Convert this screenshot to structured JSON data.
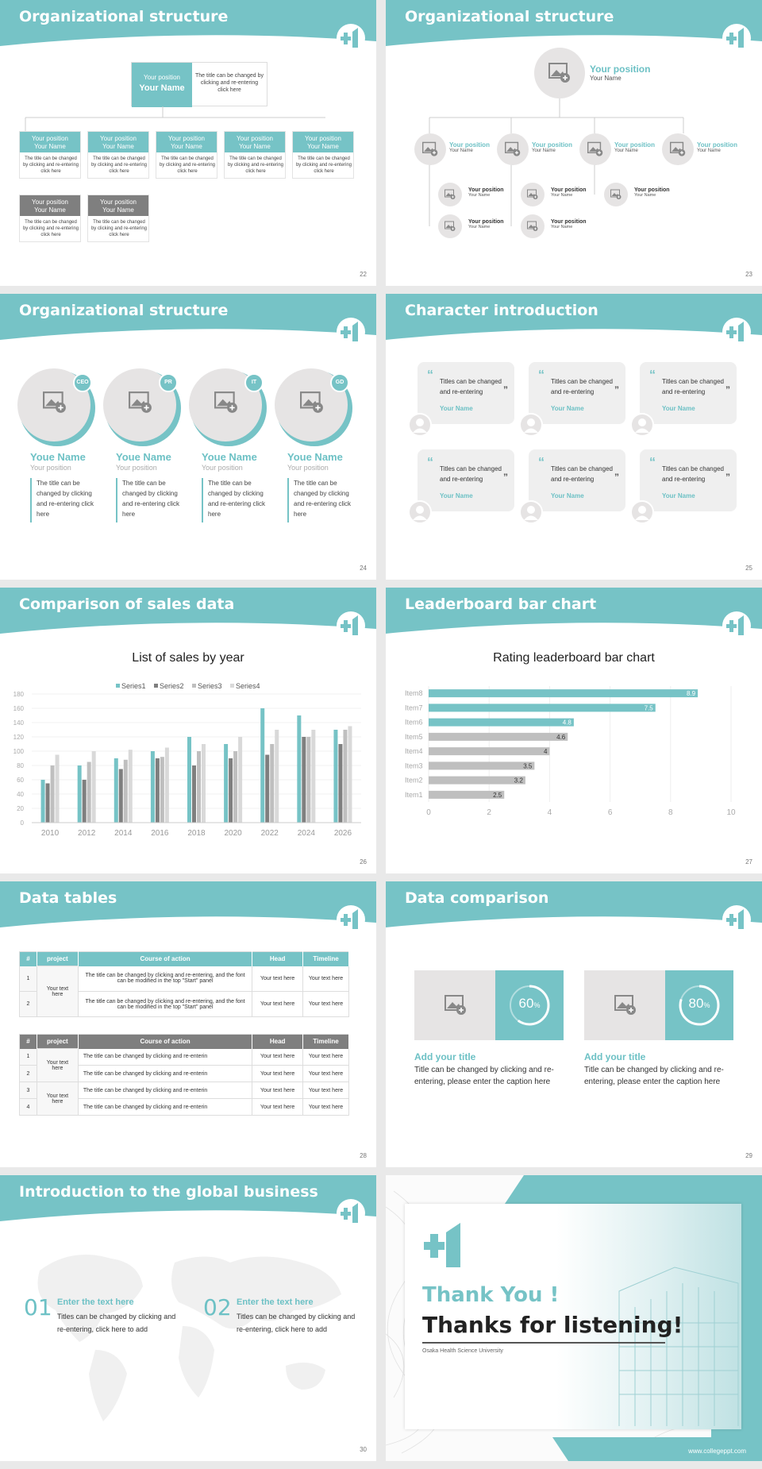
{
  "colors": {
    "accent": "#76c3c6",
    "gray": "#7f7f7f",
    "light": "#e6e4e4",
    "bg": "#e9e9e9"
  },
  "icons": {
    "logo": "plus-one-logo-icon",
    "image": "image-placeholder-icon",
    "user": "user-avatar-icon",
    "quote": "quote-icon"
  },
  "slides": {
    "s22": {
      "title": "Organizational structure",
      "num": "22",
      "top_position": "Your position",
      "top_name": "Your Name",
      "top_desc": "The title can be changed by clicking and re-entering click here",
      "row1": [
        {
          "position": "Your position",
          "name": "Your Name",
          "desc": "The title can be changed by clicking and re-entering click here"
        },
        {
          "position": "Your position",
          "name": "Your Name",
          "desc": "The title can be changed by clicking and re-entering click here"
        },
        {
          "position": "Your position",
          "name": "Your Name",
          "desc": "The title can be changed by clicking and re-entering click here"
        },
        {
          "position": "Your position",
          "name": "Your Name",
          "desc": "The title can be changed by clicking and re-entering click here"
        },
        {
          "position": "Your position",
          "name": "Your Name",
          "desc": "The title can be changed by clicking and re-entering click here"
        }
      ],
      "row2": [
        {
          "position": "Your position",
          "name": "Your Name",
          "desc": "The title can be changed by clicking and re-entering click here"
        },
        {
          "position": "Your position",
          "name": "Your Name",
          "desc": "The title can be changed by clicking and re-entering click here"
        }
      ]
    },
    "s23": {
      "title": "Organizational structure",
      "num": "23",
      "top": {
        "position": "Your position",
        "name": "Your Name"
      },
      "mid": [
        {
          "position": "Your position",
          "name": "Your Name"
        },
        {
          "position": "Your position",
          "name": "Your Name"
        },
        {
          "position": "Your position",
          "name": "Your Name"
        },
        {
          "position": "Your position",
          "name": "Your Name"
        }
      ],
      "sub": [
        {
          "position": "Your position",
          "name": "Your Name"
        },
        {
          "position": "Your position",
          "name": "Your Name"
        },
        {
          "position": "Your position",
          "name": "Your Name"
        },
        {
          "position": "Your position",
          "name": "Your Name"
        },
        {
          "position": "Your position",
          "name": "Your Name"
        },
        {
          "position": "Your position",
          "name": "Your Name"
        }
      ]
    },
    "s24": {
      "title": "Organizational structure",
      "num": "24",
      "people": [
        {
          "badge": "CEO",
          "name": "Youe Name",
          "position": "Your position",
          "desc": "The title can be changed by clicking and re-entering click here"
        },
        {
          "badge": "PR",
          "name": "Youe Name",
          "position": "Your position",
          "desc": "The title can be changed by clicking and re-entering click here"
        },
        {
          "badge": "IT",
          "name": "Youe Name",
          "position": "Your position",
          "desc": "The title can be changed by clicking and re-entering click here"
        },
        {
          "badge": "GD",
          "name": "Youe Name",
          "position": "Your position",
          "desc": "The title can be changed by clicking and re-entering click here"
        }
      ]
    },
    "s25": {
      "title": "Character introduction",
      "num": "25",
      "cards": [
        {
          "text": "Titles can be changed and re-entering",
          "name": "Your Name"
        },
        {
          "text": "Titles can be changed and re-entering",
          "name": "Your Name"
        },
        {
          "text": "Titles can be changed and re-entering",
          "name": "Your Name"
        },
        {
          "text": "Titles can be changed and re-entering",
          "name": "Your Name"
        },
        {
          "text": "Titles can be changed and re-entering",
          "name": "Your Name"
        },
        {
          "text": "Titles can be changed and re-entering",
          "name": "Your Name"
        }
      ]
    },
    "s26": {
      "title": "Comparison of sales data",
      "num": "26"
    },
    "s27": {
      "title": "Leaderboard bar chart",
      "num": "27"
    },
    "s28": {
      "title": "Data tables",
      "num": "28",
      "table1": {
        "headers": [
          "#",
          "project",
          "Course of action",
          "Head",
          "Timeline"
        ],
        "project": "Your text here",
        "rows": [
          {
            "n": "1",
            "action": "The title can be changed by clicking and re-entering, and the font can be modified in the top \"Start\" panel",
            "head": "Your text here",
            "time": "Your text here"
          },
          {
            "n": "2",
            "action": "The title can be changed by clicking and re-entering, and the font can be modified in the top \"Start\" panel",
            "head": "Your text here",
            "time": "Your text here"
          }
        ]
      },
      "table2": {
        "headers": [
          "#",
          "project",
          "Course of action",
          "Head",
          "Timeline"
        ],
        "projects": [
          "Your text here",
          "Your text here"
        ],
        "rows": [
          {
            "n": "1",
            "action": "The title can be changed by clicking and re-enterin",
            "head": "Your text here",
            "time": "Your text here"
          },
          {
            "n": "2",
            "action": "The title can be changed by clicking and re-enterin",
            "head": "Your text here",
            "time": "Your text here"
          },
          {
            "n": "3",
            "action": "The title can be changed by clicking and re-enterin",
            "head": "Your text here",
            "time": "Your text here"
          },
          {
            "n": "4",
            "action": "The title can be changed by clicking and re-enterin",
            "head": "Your text here",
            "time": "Your text here"
          }
        ]
      }
    },
    "s29": {
      "title": "Data comparison",
      "num": "29",
      "items": [
        {
          "value": "60",
          "unit": "%",
          "percent": 60,
          "title": "Add your title",
          "desc": "Title can be changed by clicking and re-entering, please enter the caption here"
        },
        {
          "value": "80",
          "unit": "%",
          "percent": 80,
          "title": "Add your title",
          "desc": "Title can be changed by clicking and re-entering, please enter the caption here"
        }
      ]
    },
    "s30": {
      "title": "Introduction to the global business",
      "num": "30",
      "items": [
        {
          "n": "01",
          "head": "Enter the text here",
          "desc": "Titles can be changed by clicking and re-entering, click here to add"
        },
        {
          "n": "02",
          "head": "Enter the text here",
          "desc": "Titles can be changed by clicking and re-entering, click here to add"
        }
      ]
    },
    "s31": {
      "thank": "Thank You !",
      "thanks": "Thanks for listening!",
      "university": "Osaka Health Science University",
      "site": "www.collegeppt.com"
    }
  },
  "chart_data": [
    {
      "type": "bar",
      "title": "List of sales by year",
      "categories": [
        "2010",
        "2012",
        "2014",
        "2016",
        "2018",
        "2020",
        "2022",
        "2024",
        "2026"
      ],
      "series": [
        {
          "name": "Series1",
          "values": [
            60,
            80,
            90,
            100,
            120,
            110,
            160,
            150,
            130
          ]
        },
        {
          "name": "Series2",
          "values": [
            55,
            60,
            75,
            90,
            80,
            90,
            95,
            120,
            110
          ]
        },
        {
          "name": "Series3",
          "values": [
            80,
            85,
            88,
            92,
            100,
            100,
            110,
            120,
            130
          ]
        },
        {
          "name": "Series4",
          "values": [
            95,
            100,
            102,
            105,
            110,
            120,
            130,
            130,
            135
          ]
        }
      ],
      "yticks": [
        "0",
        "20",
        "40",
        "60",
        "80",
        "100",
        "120",
        "140",
        "160",
        "180"
      ],
      "ylim": [
        0,
        180
      ],
      "legend": "top",
      "colors": [
        "#76c3c6",
        "#7f7f7f",
        "#bfbfbf",
        "#d9d9d9"
      ]
    },
    {
      "type": "bar",
      "orientation": "horizontal",
      "title": "Rating leaderboard bar chart",
      "categories": [
        "Item8",
        "Item7",
        "Item6",
        "Item5",
        "Item4",
        "Item3",
        "Item2",
        "Item1"
      ],
      "values": [
        8.9,
        7.5,
        4.8,
        4.6,
        4,
        3.5,
        3.2,
        2.5
      ],
      "labels": [
        "8.9",
        "7.5",
        "4.8",
        "4.6",
        "4",
        "3.5",
        "3.2",
        "2.5"
      ],
      "xticks": [
        "0",
        "2",
        "4",
        "6",
        "8",
        "10"
      ],
      "xlim": [
        0,
        10
      ],
      "colors": {
        "high": "#76c3c6",
        "low": "#bfbfbf"
      }
    }
  ]
}
